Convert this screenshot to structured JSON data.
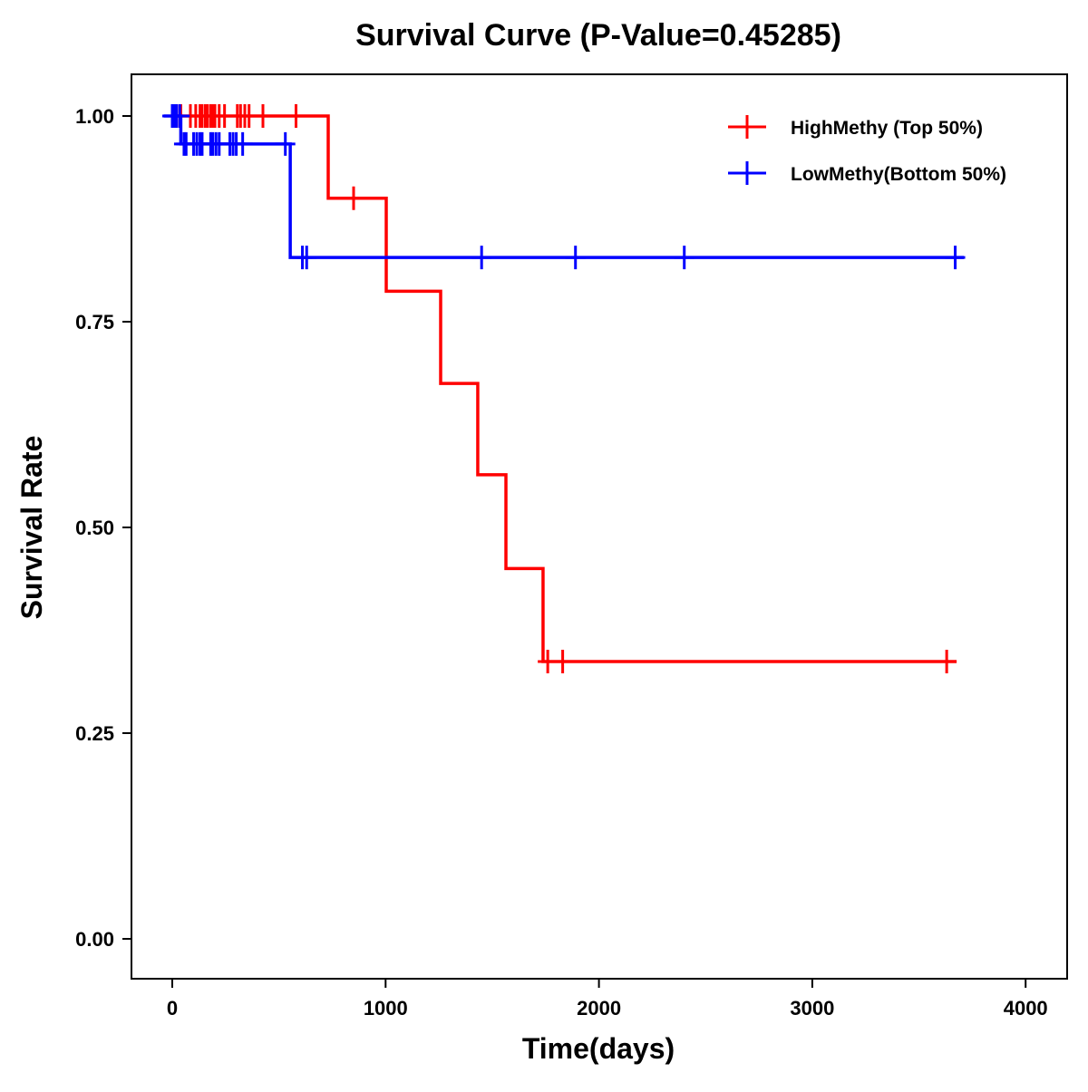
{
  "chart_data": {
    "type": "line",
    "title": "Survival Curve (P-Value=0.45285)",
    "xlabel": "Time(days)",
    "ylabel": "Survival Rate",
    "xlim": [
      -200,
      4200
    ],
    "ylim": [
      -0.05,
      1.05
    ],
    "xticks": [
      0,
      1000,
      2000,
      3000,
      4000
    ],
    "xtick_labels": [
      "0",
      "1000",
      "2000",
      "3000",
      "4000"
    ],
    "yticks": [
      0,
      0.25,
      0.5,
      0.75,
      1
    ],
    "ytick_labels": [
      "0.00",
      "0.25",
      "0.50",
      "0.75",
      "1.00"
    ],
    "grid": false,
    "legend_position": "top-right",
    "series": [
      {
        "name": "HighMethy (Top 50%)",
        "color": "#ff0000",
        "steps": [
          [
            0,
            1.0
          ],
          [
            731,
            0.9
          ],
          [
            1003,
            0.787
          ],
          [
            1258,
            0.675
          ],
          [
            1432,
            0.564
          ],
          [
            1564,
            0.45
          ],
          [
            1738,
            0.337
          ],
          [
            3676,
            0.337
          ]
        ],
        "censored": [
          [
            0,
            1
          ],
          [
            5,
            1
          ],
          [
            10,
            1
          ],
          [
            20,
            1
          ],
          [
            40,
            1
          ],
          [
            85,
            1
          ],
          [
            110,
            1
          ],
          [
            130,
            1
          ],
          [
            140,
            1
          ],
          [
            155,
            1
          ],
          [
            165,
            1
          ],
          [
            180,
            1
          ],
          [
            190,
            1
          ],
          [
            200,
            1
          ],
          [
            220,
            1
          ],
          [
            245,
            1
          ],
          [
            305,
            1
          ],
          [
            320,
            1
          ],
          [
            340,
            1
          ],
          [
            360,
            1
          ],
          [
            425,
            1
          ],
          [
            580,
            1
          ],
          [
            850,
            0.9
          ],
          [
            1760,
            0.337
          ],
          [
            1830,
            0.337
          ],
          [
            3630,
            0.337
          ]
        ]
      },
      {
        "name": "LowMethy(Bottom 50%)",
        "color": "#0000ff",
        "steps": [
          [
            -40,
            1.0
          ],
          [
            40,
            0.966
          ],
          [
            553,
            0.828
          ],
          [
            3710,
            0.828
          ]
        ],
        "censored": [
          [
            0,
            1
          ],
          [
            10,
            1
          ],
          [
            20,
            1
          ],
          [
            35,
            1
          ],
          [
            55,
            0.966
          ],
          [
            65,
            0.966
          ],
          [
            100,
            0.966
          ],
          [
            115,
            0.966
          ],
          [
            130,
            0.966
          ],
          [
            140,
            0.966
          ],
          [
            180,
            0.966
          ],
          [
            190,
            0.966
          ],
          [
            205,
            0.966
          ],
          [
            220,
            0.966
          ],
          [
            270,
            0.966
          ],
          [
            285,
            0.966
          ],
          [
            300,
            0.966
          ],
          [
            330,
            0.966
          ],
          [
            530,
            0.966
          ],
          [
            610,
            0.828
          ],
          [
            630,
            0.828
          ],
          [
            1450,
            0.828
          ],
          [
            1890,
            0.828
          ],
          [
            2400,
            0.828
          ],
          [
            3670,
            0.828
          ]
        ]
      }
    ]
  }
}
